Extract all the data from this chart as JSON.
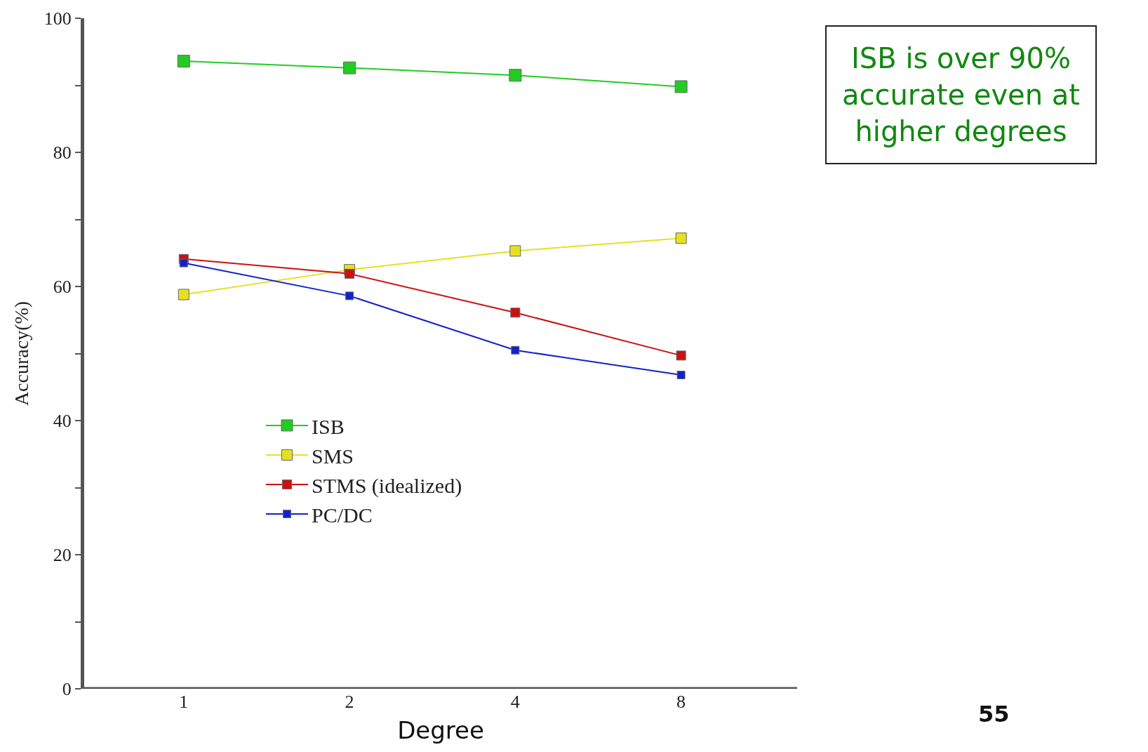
{
  "chart_data": {
    "type": "line",
    "xlabel": "Degree",
    "ylabel": "Accuracy(%)",
    "categories": [
      "1",
      "2",
      "4",
      "8"
    ],
    "series": [
      {
        "name": "ISB",
        "color": "#22cc22",
        "values": [
          93.6,
          92.6,
          91.5,
          89.8
        ]
      },
      {
        "name": "SMS",
        "color": "#e6e020",
        "values": [
          58.8,
          62.5,
          65.3,
          67.2
        ]
      },
      {
        "name": "STMS (idealized)",
        "color": "#cc1111",
        "values": [
          64.1,
          61.9,
          56.1,
          49.7
        ]
      },
      {
        "name": "PC/DC",
        "color": "#1122cc",
        "values": [
          63.5,
          58.6,
          50.5,
          46.8
        ]
      }
    ],
    "ylim": [
      0,
      100
    ],
    "yticks": [
      0,
      {
        "value": 10,
        "label": null
      },
      20,
      {
        "value": 30,
        "label": null
      },
      40,
      {
        "value": 50,
        "label": null
      },
      60,
      {
        "value": 70,
        "label": null
      },
      80,
      {
        "value": 90,
        "label": null
      },
      100
    ],
    "marker": "square",
    "line_style": "solid",
    "legend": "bottom left",
    "annotations": [
      "ISB is over 90% accurate even at higher degrees",
      "55"
    ]
  }
}
